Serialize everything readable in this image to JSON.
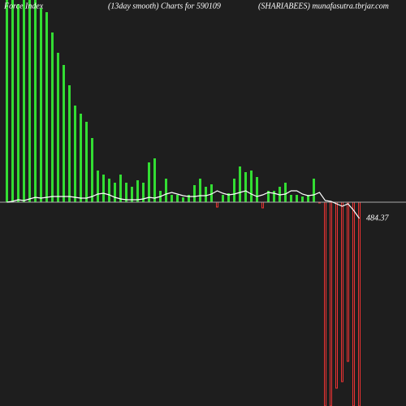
{
  "chart_data": {
    "type": "bar",
    "title_left": "Force Index",
    "title": "(13day smooth) Charts for 590109",
    "title_right": "(SHARIABEES) munafasutra.tbrjar.com",
    "line_label": "484.37",
    "ylim": [
      -251,
      249
    ],
    "positive_color": "#33dd33",
    "negative_color": "#ee3333",
    "line_color": "#ffffff",
    "values": [
      249,
      249,
      244,
      249,
      249,
      249,
      239,
      234,
      209,
      184,
      169,
      144,
      119,
      109,
      99,
      79,
      39,
      34,
      29,
      24,
      34,
      24,
      19,
      27,
      24,
      49,
      54,
      14,
      29,
      9,
      9,
      6,
      9,
      21,
      29,
      19,
      22,
      -6,
      9,
      11,
      29,
      44,
      37,
      39,
      31,
      -7,
      14,
      14,
      19,
      24,
      9,
      9,
      7,
      9,
      29,
      -1,
      -251,
      -251,
      -229,
      -221,
      -196,
      -251,
      -251
    ],
    "line_values": [
      0,
      1,
      3,
      2,
      4,
      6,
      5,
      6,
      7,
      7,
      7,
      7,
      6,
      5,
      5,
      7,
      10,
      11,
      9,
      6,
      4,
      3,
      3,
      3,
      4,
      6,
      5,
      7,
      10,
      12,
      10,
      8,
      7,
      7,
      8,
      8,
      10,
      14,
      11,
      9,
      10,
      12,
      14,
      10,
      7,
      9,
      12,
      11,
      9,
      10,
      14,
      14,
      10,
      8,
      9,
      12,
      2,
      1,
      -2,
      -5,
      -2,
      -10,
      -20
    ]
  }
}
